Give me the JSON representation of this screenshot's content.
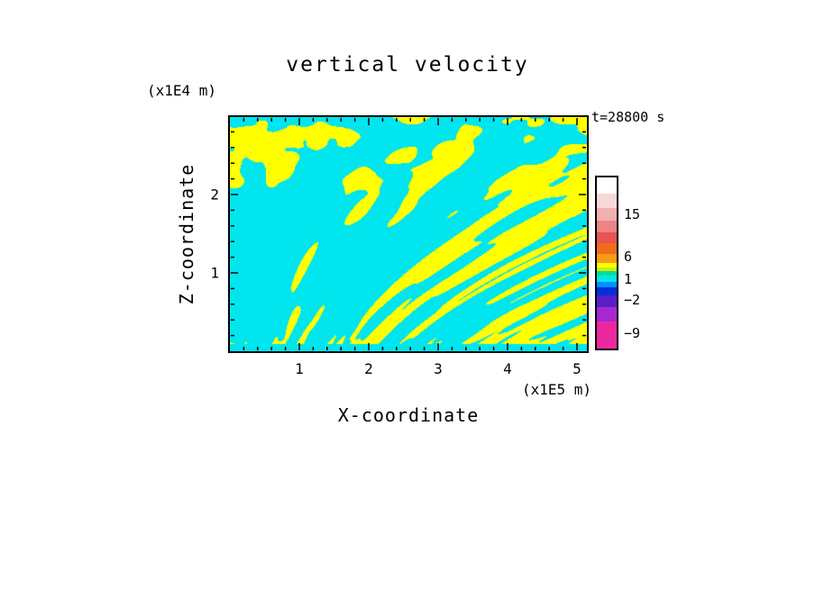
{
  "title": "vertical velocity",
  "timestamp": "t=28800 s",
  "axes": {
    "x": {
      "label": "X-coordinate",
      "unit": "(x1E5 m)",
      "ticks": [
        1,
        2,
        3,
        4,
        5
      ],
      "range": [
        0,
        5.13
      ]
    },
    "z": {
      "label": "Z-coordinate",
      "unit": "(x1E4 m)",
      "ticks": [
        1,
        2
      ],
      "range": [
        0,
        3.0
      ]
    }
  },
  "colorbar": {
    "labels": [
      {
        "text": "15",
        "y": 43
      },
      {
        "text": "6",
        "y": 90
      },
      {
        "text": "1",
        "y": 115
      },
      {
        "text": "−2",
        "y": 138
      },
      {
        "text": "−9",
        "y": 175
      }
    ],
    "segments": [
      {
        "color": "#ffffff",
        "h": 18
      },
      {
        "color": "#f6d8d8",
        "h": 16
      },
      {
        "color": "#f0b0b0",
        "h": 14
      },
      {
        "color": "#ec8484",
        "h": 13
      },
      {
        "color": "#e85454",
        "h": 12
      },
      {
        "color": "#f06c1c",
        "h": 12
      },
      {
        "color": "#f89c14",
        "h": 10
      },
      {
        "color": "#ffff00",
        "h": 5
      },
      {
        "color": "#cdf000",
        "h": 4
      },
      {
        "color": "#00dca0",
        "h": 5
      },
      {
        "color": "#00e5ee",
        "h": 7
      },
      {
        "color": "#0090ff",
        "h": 6
      },
      {
        "color": "#0030d8",
        "h": 9
      },
      {
        "color": "#5a1ec8",
        "h": 13
      },
      {
        "color": "#a828d0",
        "h": 16
      },
      {
        "color": "#ec28a0",
        "h": 30
      }
    ]
  },
  "chart_data": {
    "type": "heatmap",
    "title": "vertical velocity",
    "xlabel": "X-coordinate",
    "x_unit": "(x1E5 m)",
    "ylabel": "Z-coordinate",
    "y_unit": "(x1E4 m)",
    "x_range": [
      0,
      5.13
    ],
    "y_range": [
      0,
      3.0
    ],
    "x_ticks": [
      1,
      2,
      3,
      4,
      5
    ],
    "y_ticks": [
      1,
      2
    ],
    "time_label": "t=28800 s",
    "colorbar_tick_labels": [
      15,
      6,
      1,
      -2,
      -9
    ],
    "palette_top_to_bottom": [
      "#ffffff",
      "#f6d8d8",
      "#f0b0b0",
      "#ec8484",
      "#e85454",
      "#f06c1c",
      "#f89c14",
      "#ffff00",
      "#cdf000",
      "#00dca0",
      "#00e5ee",
      "#0090ff",
      "#0030d8",
      "#5a1ec8",
      "#a828d0",
      "#ec28a0"
    ],
    "pattern_colors": {
      "positive": "#ffff00",
      "negative": "#00e5ee"
    },
    "field_description": "Two-tone vertical-velocity cross-section at t=28800 s: interleaved yellow (weak updraft, roughly 1 to 6) and cyan (weak downdraft, roughly -2 to 1) cells. Upper half shows blobby convective cells; lower half shows fine, vertically elongated striations; a thin solid cyan band lies along the bottom boundary. No values reach the extreme palette colors."
  }
}
